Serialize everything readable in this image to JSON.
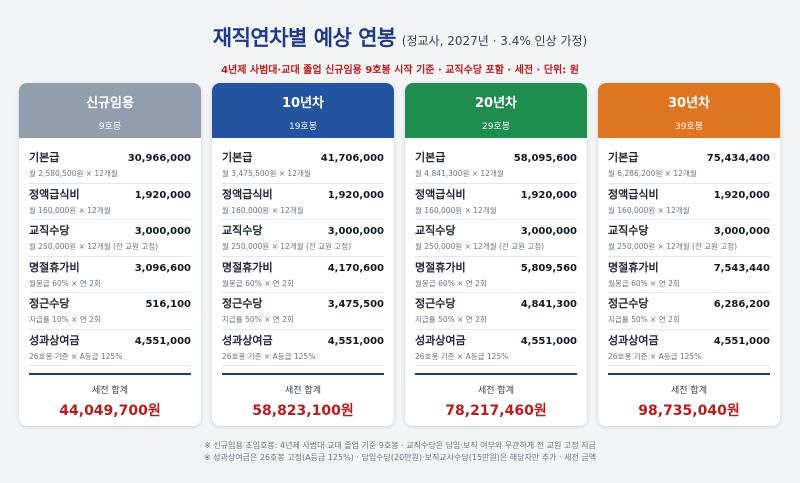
{
  "header": {
    "title": "재직연차별 예상 연봉",
    "title_sub": "(정교사, 2027년 · 3.4% 인상 가정)",
    "subtitle": "4년제 사범대·교대 졸업 신규임용 9호봉 시작 기준 · 교직수당 포함 · 세전 · 단위: 원"
  },
  "colors": {
    "card1": "#929eae",
    "card2": "#2453a0",
    "card3": "#1e8d4e",
    "card4": "#de7521",
    "accent": "#1e3a8a",
    "total": "#b91c1c"
  },
  "cards": [
    {
      "title": "신규임용",
      "grade": "9호봉",
      "items": [
        {
          "name": "기본급",
          "amount": "30,966,000",
          "desc": "월 2,580,500원 × 12개월"
        },
        {
          "name": "정액급식비",
          "amount": "1,920,000",
          "desc": "월 160,000원 × 12개월"
        },
        {
          "name": "교직수당",
          "amount": "3,000,000",
          "desc": "월 250,000원 × 12개월 (전 교원 고정)"
        },
        {
          "name": "명절휴가비",
          "amount": "3,096,600",
          "desc": "월봉급 60% × 연 2회"
        },
        {
          "name": "정근수당",
          "amount": "516,100",
          "desc": "지급률 10% × 연 2회"
        },
        {
          "name": "성과상여금",
          "amount": "4,551,000",
          "desc": "26호봉 기준 × A등급 125%"
        }
      ],
      "total_label": "세전 합계",
      "total": "44,049,700원"
    },
    {
      "title": "10년차",
      "grade": "19호봉",
      "items": [
        {
          "name": "기본급",
          "amount": "41,706,000",
          "desc": "월 3,475,500원 × 12개월"
        },
        {
          "name": "정액급식비",
          "amount": "1,920,000",
          "desc": "월 160,000원 × 12개월"
        },
        {
          "name": "교직수당",
          "amount": "3,000,000",
          "desc": "월 250,000원 × 12개월 (전 교원 고정)"
        },
        {
          "name": "명절휴가비",
          "amount": "4,170,600",
          "desc": "월봉급 60% × 연 2회"
        },
        {
          "name": "정근수당",
          "amount": "3,475,500",
          "desc": "지급률 50% × 연 2회"
        },
        {
          "name": "성과상여금",
          "amount": "4,551,000",
          "desc": "26호봉 기준 × A등급 125%"
        }
      ],
      "total_label": "세전 합계",
      "total": "58,823,100원"
    },
    {
      "title": "20년차",
      "grade": "29호봉",
      "items": [
        {
          "name": "기본급",
          "amount": "58,095,600",
          "desc": "월 4,841,300원 × 12개월"
        },
        {
          "name": "정액급식비",
          "amount": "1,920,000",
          "desc": "월 160,000원 × 12개월"
        },
        {
          "name": "교직수당",
          "amount": "3,000,000",
          "desc": "월 250,000원 × 12개월 (전 교원 고정)"
        },
        {
          "name": "명절휴가비",
          "amount": "5,809,560",
          "desc": "월봉급 60% × 연 2회"
        },
        {
          "name": "정근수당",
          "amount": "4,841,300",
          "desc": "지급률 50% × 연 2회"
        },
        {
          "name": "성과상여금",
          "amount": "4,551,000",
          "desc": "26호봉 기준 × A등급 125%"
        }
      ],
      "total_label": "세전 합계",
      "total": "78,217,460원"
    },
    {
      "title": "30년차",
      "grade": "39호봉",
      "items": [
        {
          "name": "기본급",
          "amount": "75,434,400",
          "desc": "월 6,286,200원 × 12개월"
        },
        {
          "name": "정액급식비",
          "amount": "1,920,000",
          "desc": "월 160,000원 × 12개월"
        },
        {
          "name": "교직수당",
          "amount": "3,000,000",
          "desc": "월 250,000원 × 12개월 (전 교원 고정)"
        },
        {
          "name": "명절휴가비",
          "amount": "7,543,440",
          "desc": "월봉급 60% × 연 2회"
        },
        {
          "name": "정근수당",
          "amount": "6,286,200",
          "desc": "지급률 50% × 연 2회"
        },
        {
          "name": "성과상여금",
          "amount": "4,551,000",
          "desc": "26호봉 기준 × A등급 125%"
        }
      ],
      "total_label": "세전 합계",
      "total": "98,735,040원"
    }
  ],
  "footnotes": [
    "※ 신규임용 초임호봉: 4년제 사범대·교대 졸업 기준 9호봉 · 교직수당은 담임·보직 여부와 무관하게 전 교원 고정 지급",
    "※ 성과상여금은 26호봉 고정(A등급 125%) · 담임수당(20만원)·보직교사수당(15만원)은 해당자만 추가 · 세전 금액"
  ]
}
